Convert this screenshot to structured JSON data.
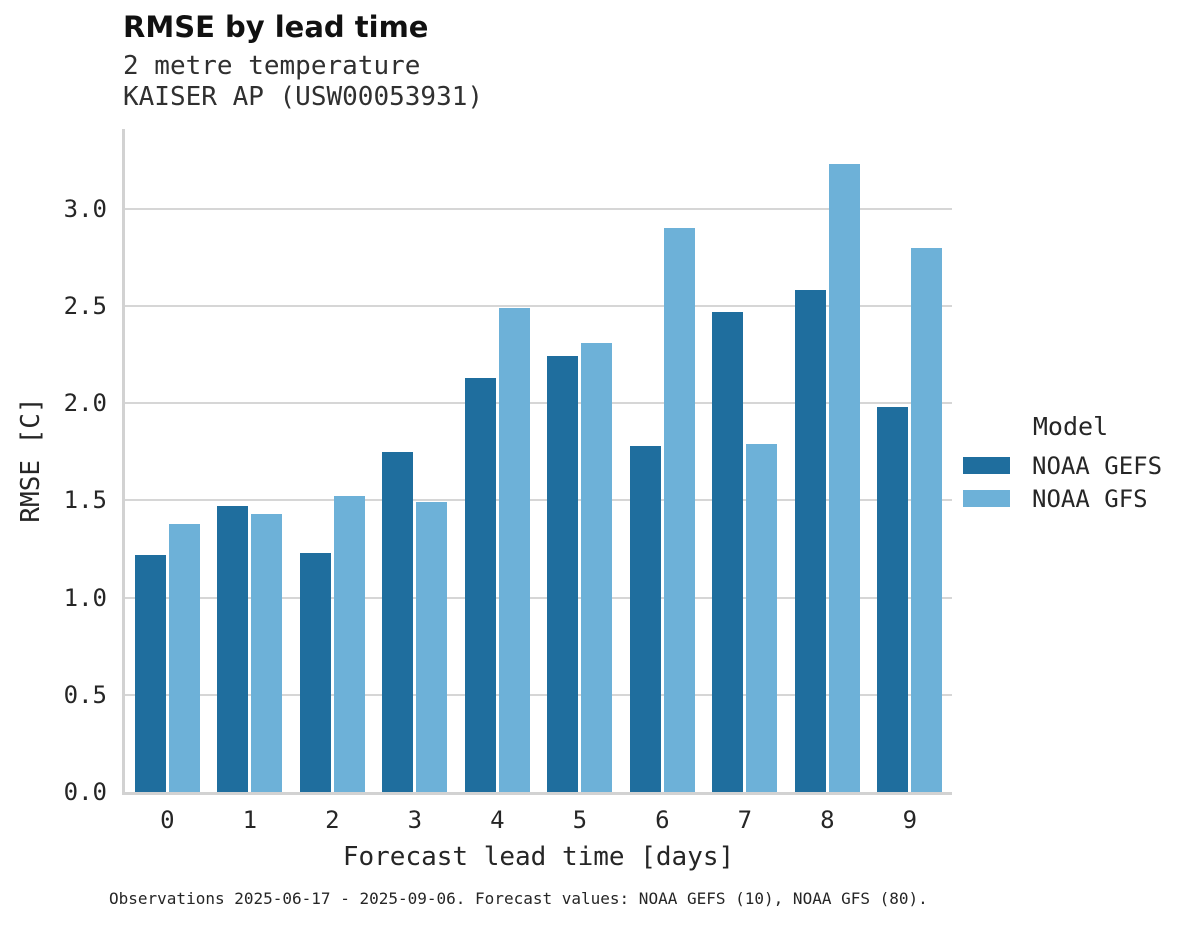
{
  "chart": {
    "title": "RMSE by lead time",
    "subtitle_lines": [
      "2 metre temperature",
      "KAISER AP (USW00053931)"
    ],
    "footnote": "Observations 2025-06-17 - 2025-09-06. Forecast values: NOAA GEFS (10), NOAA GFS (80).",
    "legend": {
      "title": "Model",
      "entries": [
        {
          "label": "NOAA GEFS",
          "color": "#1f6e9e"
        },
        {
          "label": "NOAA GFS",
          "color": "#6db1d8"
        }
      ]
    }
  },
  "chart_data": {
    "type": "bar",
    "title": "RMSE by lead time",
    "subtitle": "2 metre temperature / KAISER AP (USW00053931)",
    "xlabel": "Forecast lead time [days]",
    "ylabel": "RMSE [C]",
    "categories": [
      "0",
      "1",
      "2",
      "3",
      "4",
      "5",
      "6",
      "7",
      "8",
      "9"
    ],
    "series": [
      {
        "name": "NOAA GEFS",
        "color": "#1f6e9e",
        "values": [
          1.22,
          1.47,
          1.23,
          1.75,
          2.13,
          2.24,
          1.78,
          2.47,
          2.58,
          1.98
        ]
      },
      {
        "name": "NOAA GFS",
        "color": "#6db1d8",
        "values": [
          1.38,
          1.43,
          1.52,
          1.49,
          2.49,
          2.31,
          2.9,
          1.79,
          3.23,
          2.8
        ]
      }
    ],
    "ylim": [
      0,
      3.41
    ],
    "yticks": [
      0.0,
      0.5,
      1.0,
      1.5,
      2.0,
      2.5,
      3.0
    ],
    "grid": "horizontal",
    "legend_position": "right",
    "legend_title": "Model"
  }
}
